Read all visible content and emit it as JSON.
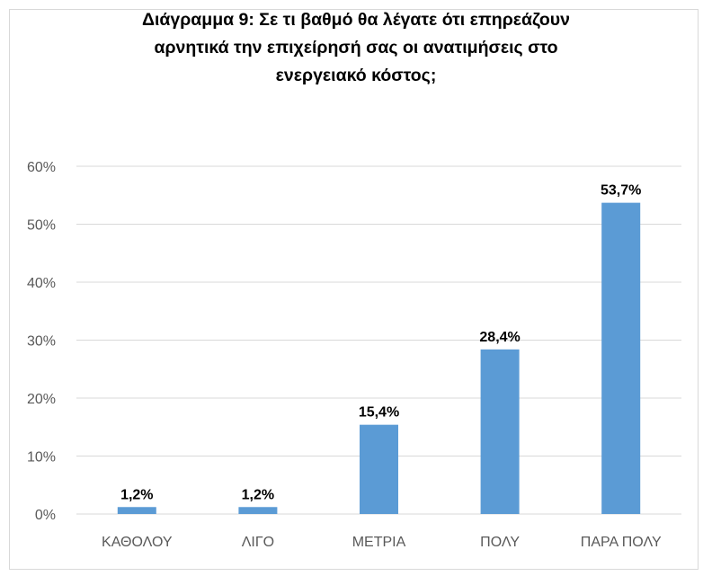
{
  "chart_data": {
    "type": "bar",
    "title": "Διάγραμμα 9: Σε τι βαθμό θα λέγατε ότι επηρεάζουν\nαρνητικά την επιχείρησή σας οι ανατιμήσεις στο\nενεργειακό κόστος;",
    "categories": [
      "ΚΑΘΟΛΟΥ",
      "ΛΙΓΟ",
      "ΜΕΤΡΙΑ",
      "ΠΟΛΥ",
      "ΠΑΡΑ ΠΟΛΥ"
    ],
    "values": [
      1.2,
      1.2,
      15.4,
      28.4,
      53.7
    ],
    "data_labels": [
      "1,2%",
      "1,2%",
      "15,4%",
      "28,4%",
      "53,7%"
    ],
    "ylim": [
      0,
      60
    ],
    "y_ticks": [
      0,
      10,
      20,
      30,
      40,
      50,
      60
    ],
    "y_tick_labels": [
      "0%",
      "10%",
      "20%",
      "30%",
      "40%",
      "50%",
      "60%"
    ],
    "xlabel": "",
    "ylabel": "",
    "grid": true,
    "legend": false,
    "bar_color": "#5b9bd5",
    "grid_color": "#d9d9d9"
  }
}
